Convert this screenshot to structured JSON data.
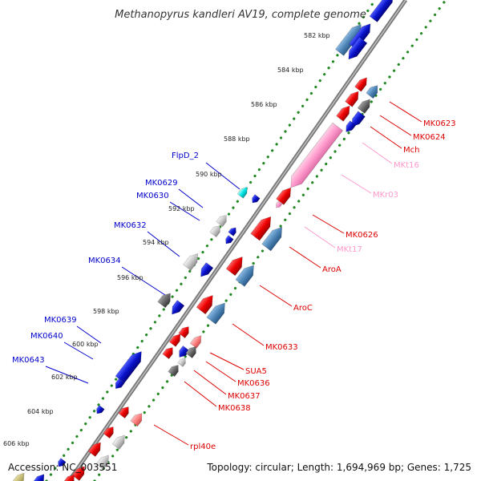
{
  "title": "Methanopyrus kandleri AV19, complete genome",
  "footer": {
    "accession": "Accession: NC_003551",
    "topology": "Topology: circular; Length: 1,694,969 bp; Genes: 1,725"
  },
  "colors": {
    "forward": "#ee0000",
    "reverse": "#0000cc",
    "rna": "#ff99cc",
    "pseudo": "#999999",
    "cyan": "#00e5e5",
    "steel": "#4f86b8",
    "backbone": "#888888",
    "ticks": "#228822"
  },
  "ticks": [
    "582 kbp",
    "584 kbp",
    "586 kbp",
    "588 kbp",
    "590 kbp",
    "592 kbp",
    "594 kbp",
    "596 kbp",
    "598 kbp",
    "600 kbp",
    "602 kbp",
    "604 kbp",
    "606 kbp"
  ],
  "left_labels": [
    "FlpD_2",
    "MK0629",
    "MK0630",
    "MK0632",
    "MK0634",
    "MK0639",
    "MK0640",
    "MK0643"
  ],
  "right_labels": [
    {
      "text": "MK0623",
      "color": "#dd0000"
    },
    {
      "text": "MK0624",
      "color": "#dd0000"
    },
    {
      "text": "Mch",
      "color": "#dd0000"
    },
    {
      "text": "MKt16",
      "color": "#ff99cc"
    },
    {
      "text": "MKr03",
      "color": "#ff99cc"
    },
    {
      "text": "MK0626",
      "color": "#dd0000"
    },
    {
      "text": "MKt17",
      "color": "#ff99cc"
    },
    {
      "text": "AroA",
      "color": "#dd0000"
    },
    {
      "text": "AroC",
      "color": "#dd0000"
    },
    {
      "text": "MK0633",
      "color": "#dd0000"
    },
    {
      "text": "SUA5",
      "color": "#dd0000"
    },
    {
      "text": "MK0636",
      "color": "#dd0000"
    },
    {
      "text": "MK0637",
      "color": "#dd0000"
    },
    {
      "text": "MK0638",
      "color": "#dd0000"
    },
    {
      "text": "rpl40e",
      "color": "#dd0000"
    }
  ]
}
